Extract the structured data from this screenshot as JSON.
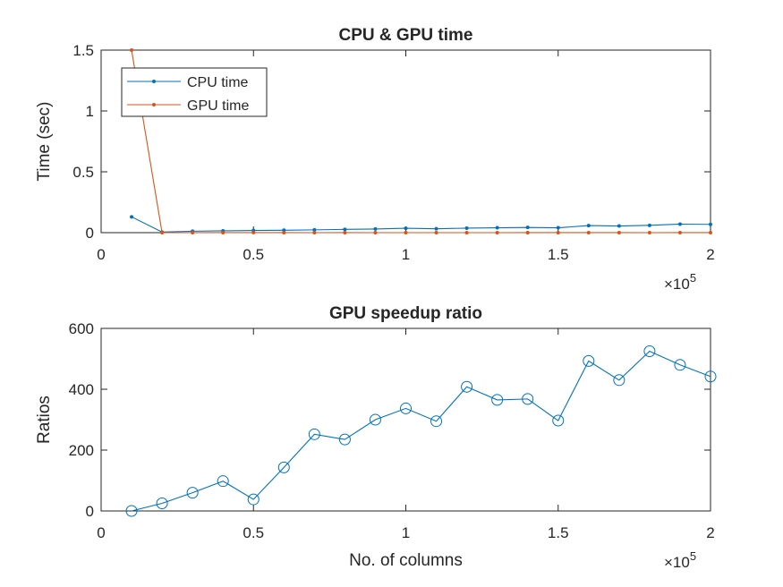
{
  "chart_data": [
    {
      "type": "line",
      "title": "CPU & GPU time",
      "xlabel": "",
      "ylabel": "Time (sec)",
      "xlim": [
        0,
        200000
      ],
      "ylim": [
        0,
        1.5
      ],
      "xticks": [
        0,
        50000,
        100000,
        150000,
        200000
      ],
      "xtick_labels": [
        "0",
        "0.5",
        "1",
        "1.5",
        "2"
      ],
      "yticks": [
        0,
        0.5,
        1,
        1.5
      ],
      "ytick_labels": [
        "0",
        "0.5",
        "1",
        "1.5"
      ],
      "x_exponent_label": "×10",
      "x_exponent_power": "5",
      "legend": "top-left",
      "grid": false,
      "x": [
        10000,
        20000,
        30000,
        40000,
        50000,
        60000,
        70000,
        80000,
        90000,
        100000,
        110000,
        120000,
        130000,
        140000,
        150000,
        160000,
        170000,
        180000,
        190000,
        200000
      ],
      "series": [
        {
          "name": "CPU time",
          "color": "#0072BD",
          "marker": "dot",
          "values": [
            0.13,
            0.005,
            0.012,
            0.015,
            0.018,
            0.02,
            0.023,
            0.027,
            0.03,
            0.036,
            0.032,
            0.037,
            0.04,
            0.043,
            0.04,
            0.058,
            0.055,
            0.06,
            0.07,
            0.068
          ]
        },
        {
          "name": "GPU time",
          "color": "#D95319",
          "marker": "dot",
          "values": [
            1.5,
            0.0002,
            0.0002,
            0.0002,
            0.0005,
            0.00014,
            9e-05,
            0.00012,
            0.0001,
            0.00011,
            0.00011,
            9e-05,
            0.00011,
            0.00012,
            0.00014,
            0.00012,
            0.00013,
            0.00011,
            0.00015,
            0.00015
          ]
        }
      ]
    },
    {
      "type": "line",
      "title": "GPU speedup ratio",
      "xlabel": "No. of columns",
      "ylabel": "Ratios",
      "xlim": [
        0,
        200000
      ],
      "ylim": [
        0,
        600
      ],
      "xticks": [
        0,
        50000,
        100000,
        150000,
        200000
      ],
      "xtick_labels": [
        "0",
        "0.5",
        "1",
        "1.5",
        "2"
      ],
      "yticks": [
        0,
        200,
        400,
        600
      ],
      "ytick_labels": [
        "0",
        "200",
        "400",
        "600"
      ],
      "x_exponent_label": "×10",
      "x_exponent_power": "5",
      "grid": false,
      "x": [
        10000,
        20000,
        30000,
        40000,
        50000,
        60000,
        70000,
        80000,
        90000,
        100000,
        110000,
        120000,
        130000,
        140000,
        150000,
        160000,
        170000,
        180000,
        190000,
        200000
      ],
      "series": [
        {
          "color": "#0072BD",
          "marker": "circle",
          "values": [
            0,
            25,
            60,
            98,
            38,
            143,
            252,
            235,
            300,
            337,
            295,
            408,
            365,
            368,
            297,
            493,
            430,
            525,
            480,
            442
          ]
        }
      ]
    }
  ]
}
